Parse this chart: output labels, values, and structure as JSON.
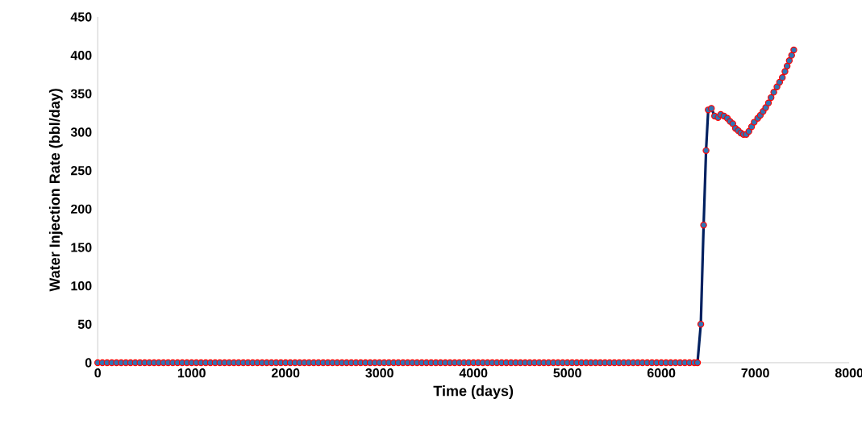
{
  "chart_data": {
    "type": "line",
    "xlabel": "Time (days)",
    "ylabel": "Water Injection Rate (bbl/day)",
    "xlim": [
      0,
      8000
    ],
    "xticks": [
      0,
      1000,
      2000,
      3000,
      4000,
      5000,
      6000,
      7000,
      8000
    ],
    "ylim": [
      0,
      450
    ],
    "yticks": [
      0,
      50,
      100,
      150,
      200,
      250,
      300,
      350,
      400,
      450
    ],
    "marker": "circle",
    "line_style": "solid",
    "series": [
      {
        "color": "#002060",
        "x": [
          0,
          50,
          100,
          150,
          200,
          250,
          300,
          350,
          400,
          450,
          500,
          550,
          600,
          650,
          700,
          750,
          800,
          850,
          900,
          950,
          1000,
          1050,
          1100,
          1150,
          1200,
          1250,
          1300,
          1350,
          1400,
          1450,
          1500,
          1550,
          1600,
          1650,
          1700,
          1750,
          1800,
          1850,
          1900,
          1950,
          2000,
          2050,
          2100,
          2150,
          2200,
          2250,
          2300,
          2350,
          2400,
          2450,
          2500,
          2550,
          2600,
          2650,
          2700,
          2750,
          2800,
          2850,
          2900,
          2950,
          3000,
          3050,
          3100,
          3150,
          3200,
          3250,
          3300,
          3350,
          3400,
          3450,
          3500,
          3550,
          3600,
          3650,
          3700,
          3750,
          3800,
          3850,
          3900,
          3950,
          4000,
          4050,
          4100,
          4150,
          4200,
          4250,
          4300,
          4350,
          4400,
          4450,
          4500,
          4550,
          4600,
          4650,
          4700,
          4750,
          4800,
          4850,
          4900,
          4950,
          5000,
          5050,
          5100,
          5150,
          5200,
          5250,
          5300,
          5350,
          5400,
          5450,
          5500,
          5550,
          5600,
          5650,
          5700,
          5750,
          5800,
          5850,
          5900,
          5950,
          6000,
          6050,
          6100,
          6150,
          6200,
          6250,
          6300,
          6350,
          6385,
          6420,
          6450,
          6476,
          6499,
          6533,
          6567,
          6604,
          6632,
          6667,
          6703,
          6732,
          6761,
          6789,
          6818,
          6846,
          6875,
          6904,
          6932,
          6961,
          6989,
          7026,
          7054,
          7083,
          7111,
          7140,
          7168,
          7197,
          7231,
          7259,
          7288,
          7316,
          7339,
          7362,
          7387,
          7410
        ],
        "values": [
          0,
          0,
          0,
          0,
          0,
          0,
          0,
          0,
          0,
          0,
          0,
          0,
          0,
          0,
          0,
          0,
          0,
          0,
          0,
          0,
          0,
          0,
          0,
          0,
          0,
          0,
          0,
          0,
          0,
          0,
          0,
          0,
          0,
          0,
          0,
          0,
          0,
          0,
          0,
          0,
          0,
          0,
          0,
          0,
          0,
          0,
          0,
          0,
          0,
          0,
          0,
          0,
          0,
          0,
          0,
          0,
          0,
          0,
          0,
          0,
          0,
          0,
          0,
          0,
          0,
          0,
          0,
          0,
          0,
          0,
          0,
          0,
          0,
          0,
          0,
          0,
          0,
          0,
          0,
          0,
          0,
          0,
          0,
          0,
          0,
          0,
          0,
          0,
          0,
          0,
          0,
          0,
          0,
          0,
          0,
          0,
          0,
          0,
          0,
          0,
          0,
          0,
          0,
          0,
          0,
          0,
          0,
          0,
          0,
          0,
          0,
          0,
          0,
          0,
          0,
          0,
          0,
          0,
          0,
          0,
          0,
          0,
          0,
          0,
          0,
          0,
          0,
          0,
          0,
          50,
          179,
          276,
          329,
          331,
          321,
          319,
          323,
          321,
          318,
          314,
          311,
          305,
          302,
          299,
          297,
          297,
          301,
          307,
          313,
          318,
          322,
          327,
          332,
          338,
          345,
          352,
          359,
          365,
          371,
          379,
          386,
          393,
          400,
          407
        ]
      }
    ]
  }
}
